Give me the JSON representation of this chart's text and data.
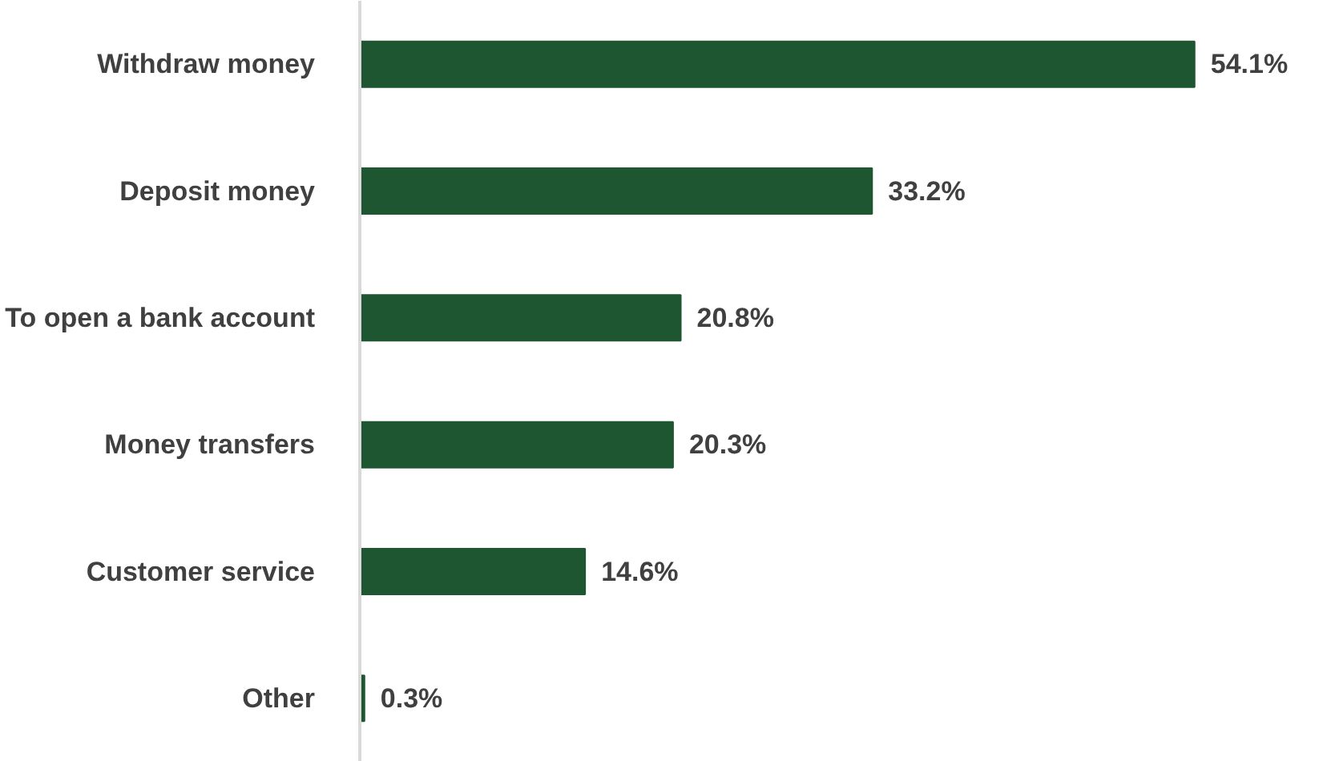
{
  "chart_data": {
    "type": "bar",
    "orientation": "horizontal",
    "categories": [
      "Withdraw money",
      "Deposit money",
      "To open a bank account",
      "Money transfers",
      "Customer service",
      "Other"
    ],
    "values": [
      54.1,
      33.2,
      20.8,
      20.3,
      14.6,
      0.3
    ],
    "value_labels": [
      "54.1%",
      "33.2%",
      "20.8%",
      "20.3%",
      "14.6%",
      "0.3%"
    ],
    "color": "#1e5631",
    "tick_labels": "y",
    "grid": false
  }
}
